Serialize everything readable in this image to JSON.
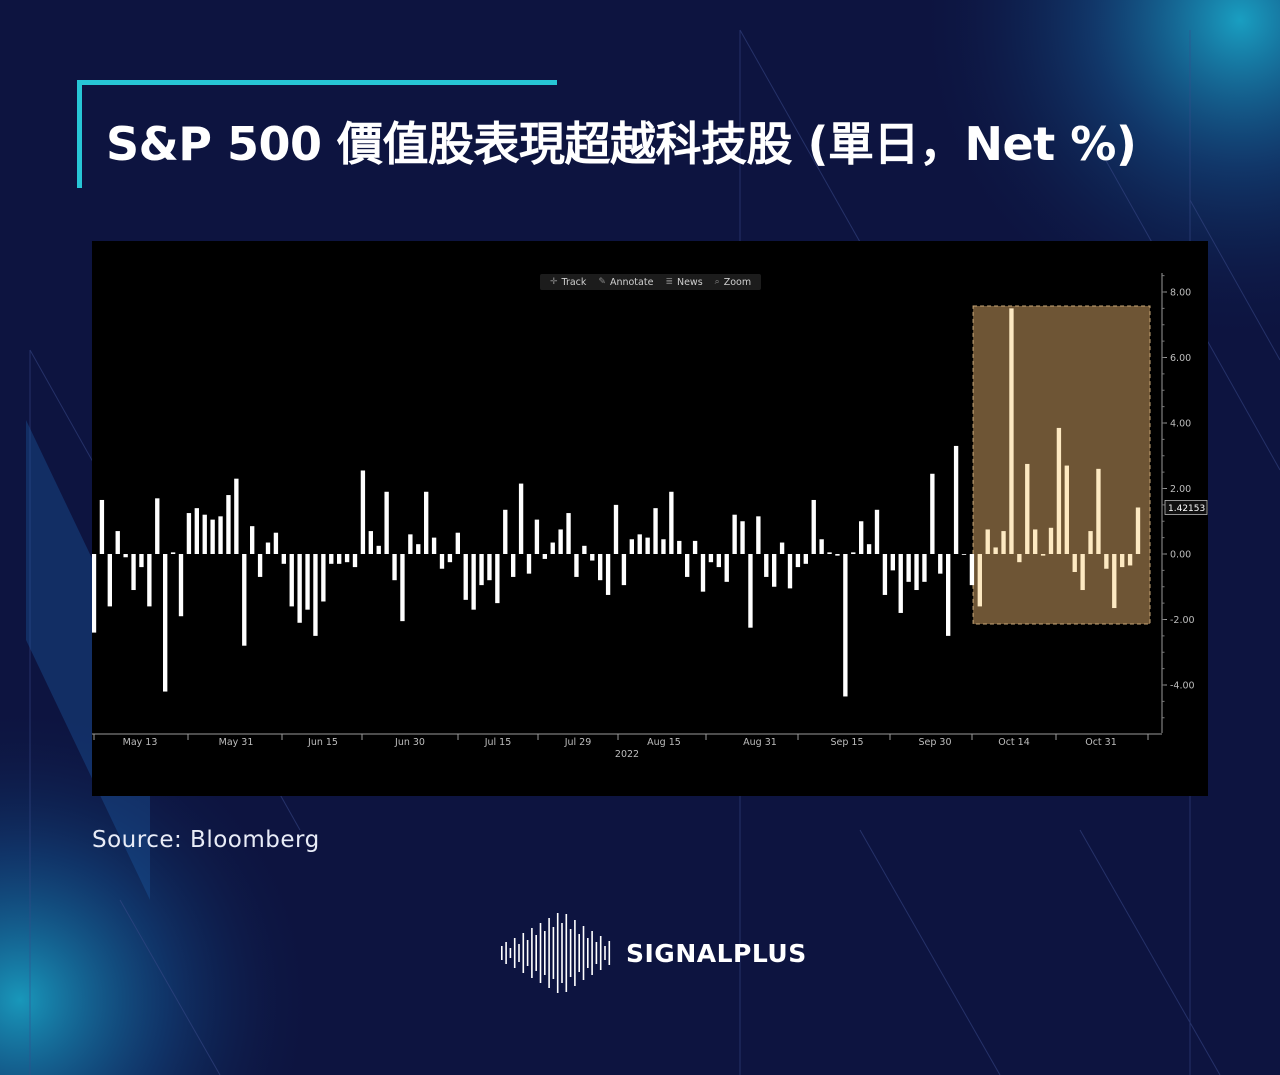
{
  "title": "S&P 500 價值股表現超越科技股 (單日，Net %)",
  "source": "Source:  Bloomberg",
  "brand": "SIGNALPLUS",
  "toolbar": [
    {
      "label": "Track",
      "icon": "crosshair-icon"
    },
    {
      "label": "Annotate",
      "icon": "pencil-icon"
    },
    {
      "label": "News",
      "icon": "news-icon"
    },
    {
      "label": "Zoom",
      "icon": "magnifier-icon"
    }
  ],
  "colors": {
    "background": "#0d1440",
    "accent": "#27c6d6",
    "bar": "#ffffff",
    "highlight_bar": "#fde9c2",
    "highlight_box": "#6e5535"
  },
  "chart_data": {
    "type": "bar",
    "year_label": "2022",
    "x_tick_labels": [
      "May 13",
      "May 31",
      "Jun 15",
      "Jun 30",
      "Jul 15",
      "Jul 29",
      "Aug 15",
      "Aug 31",
      "Sep 15",
      "Sep 30",
      "Oct 14",
      "Oct 31"
    ],
    "y_tick_labels": [
      "8.00",
      "6.00",
      "4.00",
      "2.00",
      "0.00",
      "-2.00",
      "-4.00"
    ],
    "ylim": [
      -5.3,
      8.6
    ],
    "last_value_label": "1.42153",
    "last_value": 1.42153,
    "highlight_start_index": 112,
    "values": [
      -2.4,
      1.65,
      -1.6,
      0.7,
      -0.1,
      -1.1,
      -0.4,
      -1.6,
      1.7,
      -4.2,
      0.05,
      -1.9,
      1.25,
      1.4,
      1.2,
      1.05,
      1.15,
      1.8,
      2.3,
      -2.8,
      0.85,
      -0.7,
      0.35,
      0.65,
      -0.3,
      -1.6,
      -2.1,
      -1.7,
      -2.5,
      -1.45,
      -0.3,
      -0.3,
      -0.25,
      -0.4,
      2.55,
      0.7,
      0.25,
      1.9,
      -0.8,
      -2.05,
      0.6,
      0.3,
      1.9,
      0.5,
      -0.45,
      -0.25,
      0.65,
      -1.4,
      -1.7,
      -0.95,
      -0.8,
      -1.5,
      1.35,
      -0.7,
      2.15,
      -0.6,
      1.05,
      -0.15,
      0.35,
      0.75,
      1.25,
      -0.7,
      0.25,
      -0.2,
      -0.8,
      -1.25,
      1.5,
      -0.95,
      0.45,
      0.6,
      0.5,
      1.4,
      0.45,
      1.9,
      0.4,
      -0.7,
      0.4,
      -1.15,
      -0.25,
      -0.4,
      -0.85,
      1.2,
      1.0,
      -2.25,
      1.15,
      -0.7,
      -1.0,
      0.35,
      -1.05,
      -0.4,
      -0.3,
      1.65,
      0.45,
      0.05,
      -0.05,
      -4.35,
      0.05,
      1.0,
      0.3,
      1.35,
      -1.25,
      -0.5,
      -1.8,
      -0.85,
      -1.1,
      -0.85,
      2.45,
      -0.6,
      -2.5,
      3.3,
      0.0,
      -0.95,
      -1.6,
      0.75,
      0.2,
      0.7,
      7.5,
      -0.25,
      2.75,
      0.75,
      -0.05,
      0.8,
      3.85,
      2.7,
      -0.55,
      -1.1,
      0.7,
      2.6,
      -0.45,
      -1.65,
      -0.4,
      -0.35,
      1.42
    ]
  }
}
